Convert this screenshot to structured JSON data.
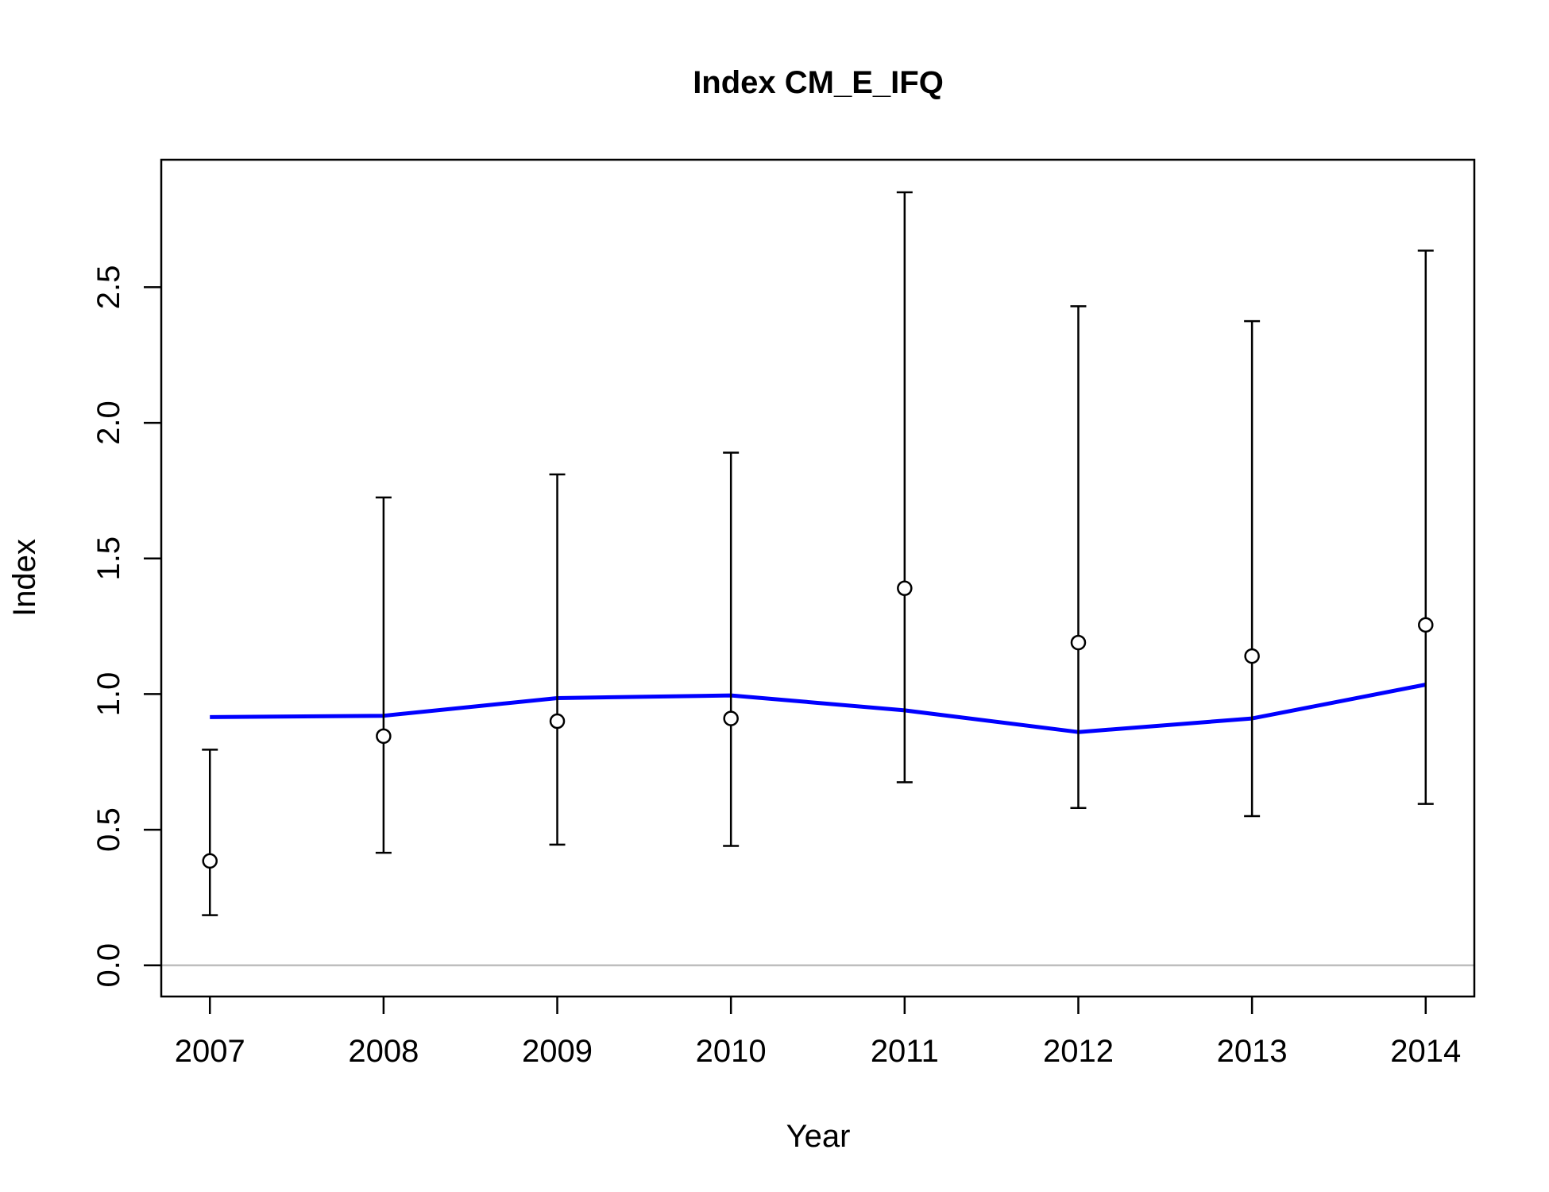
{
  "chart_data": {
    "type": "scatter",
    "title": "Index CM_E_IFQ",
    "xlabel": "Year",
    "ylabel": "Index",
    "x": [
      2007,
      2008,
      2009,
      2010,
      2011,
      2012,
      2013,
      2014
    ],
    "x_ticks": [
      "2007",
      "2008",
      "2009",
      "2010",
      "2011",
      "2012",
      "2013",
      "2014"
    ],
    "y_ticks": [
      "0.0",
      "0.5",
      "1.0",
      "1.5",
      "2.0",
      "2.5"
    ],
    "y_tick_values": [
      0.0,
      0.5,
      1.0,
      1.5,
      2.0,
      2.5
    ],
    "xlim": [
      2006.72,
      2014.28
    ],
    "ylim": [
      -0.115,
      2.97
    ],
    "reference_line_y": 0,
    "grid": false,
    "legend": "none",
    "series": [
      {
        "kind": "observed",
        "values": [
          0.385,
          0.845,
          0.9,
          0.91,
          1.39,
          1.19,
          1.14,
          1.255
        ],
        "lower": [
          0.185,
          0.415,
          0.445,
          0.44,
          0.675,
          0.58,
          0.55,
          0.595
        ],
        "upper": [
          0.795,
          1.725,
          1.81,
          1.89,
          2.85,
          2.43,
          2.375,
          2.635
        ],
        "color": "#000000",
        "marker": "open-circle"
      },
      {
        "kind": "expected",
        "values": [
          0.915,
          0.92,
          0.985,
          0.995,
          0.94,
          0.86,
          0.91,
          1.035
        ],
        "color": "#0000ff"
      }
    ],
    "reference_line_color": "#bebebe"
  }
}
